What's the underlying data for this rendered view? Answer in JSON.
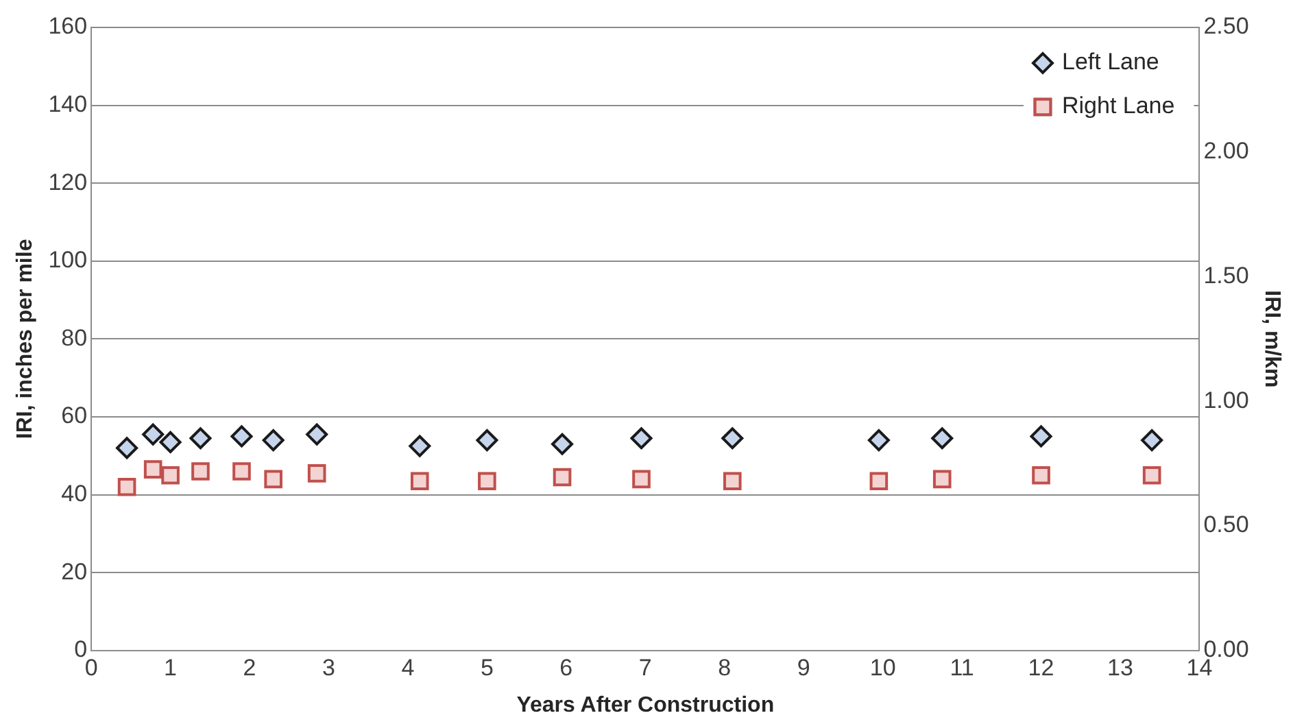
{
  "chart_data": {
    "type": "scatter",
    "xlabel": "Years After Construction",
    "ylabel": "IRI, inches per mile",
    "y2label": "IRI, m/km",
    "xlim": [
      0,
      14
    ],
    "xticks": [
      0,
      1,
      2,
      3,
      4,
      5,
      6,
      7,
      8,
      9,
      10,
      11,
      12,
      13,
      14
    ],
    "ylim": [
      0,
      160
    ],
    "yticks": [
      0,
      20,
      40,
      60,
      80,
      100,
      120,
      140,
      160
    ],
    "y2lim": [
      0,
      2.5
    ],
    "y2ticks": [
      {
        "value": 0,
        "label": "0.00"
      },
      {
        "value": 0.5,
        "label": "0.50"
      },
      {
        "value": 1,
        "label": "1.00"
      },
      {
        "value": 1.5,
        "label": "1.50"
      },
      {
        "value": 2,
        "label": "2.00"
      },
      {
        "value": 2.5,
        "label": "2.50"
      }
    ],
    "grid": "y",
    "legend": "top right",
    "series": [
      {
        "name": "Left Lane",
        "color": "#c6d5ec",
        "marker": "diamond",
        "x": [
          0.45,
          0.78,
          1.0,
          1.38,
          1.9,
          2.3,
          2.85,
          4.15,
          5.0,
          5.95,
          6.95,
          8.1,
          9.95,
          10.75,
          12.0,
          13.4
        ],
        "values": [
          52,
          55.5,
          53.5,
          54.5,
          55,
          54,
          55.5,
          52.5,
          54,
          53,
          54.5,
          54.5,
          54,
          54.5,
          55,
          54
        ]
      },
      {
        "name": "Right Lane",
        "color": "#f4d3d3",
        "marker": "square",
        "x": [
          0.45,
          0.78,
          1.0,
          1.38,
          1.9,
          2.3,
          2.85,
          4.15,
          5.0,
          5.95,
          6.95,
          8.1,
          9.95,
          10.75,
          12.0,
          13.4
        ],
        "values": [
          42,
          46.5,
          45,
          46,
          46,
          44,
          45.5,
          43.5,
          43.5,
          44.5,
          44,
          43.5,
          43.5,
          44,
          45,
          45
        ]
      }
    ]
  }
}
